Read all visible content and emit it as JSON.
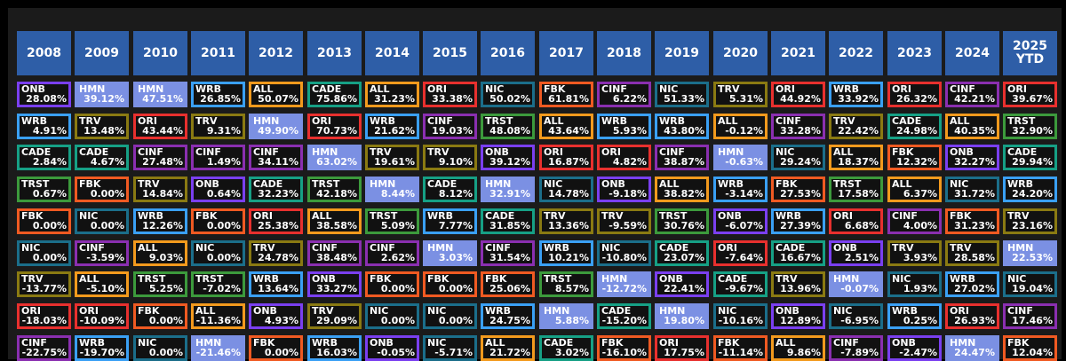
{
  "years": [
    "2008",
    "2009",
    "2010",
    "2011",
    "2012",
    "2013",
    "2014",
    "2015",
    "2016",
    "2017",
    "2018",
    "2019",
    "2020",
    "2021",
    "2022",
    "2023",
    "2024",
    "2025\nYTD"
  ],
  "ticker_colors": {
    "ONB": "#7a3ff0",
    "HMN": "#7b90e3",
    "WRB": "#3aa0f5",
    "ALL": "#f39a1d",
    "CADE": "#16a085",
    "ORI": "#e8302e",
    "NIC": "#1b6e8a",
    "FBK": "#f05a22",
    "CINF": "#8a2fb0",
    "TRV": "#8a7a12",
    "TRST": "#3c9a3c"
  },
  "highlight_ticker": "HMN",
  "columns": [
    [
      [
        "ONB",
        "28.08%"
      ],
      [
        "WRB",
        "4.91%"
      ],
      [
        "CADE",
        "2.84%"
      ],
      [
        "TRST",
        "0.67%"
      ],
      [
        "FBK",
        "0.00%"
      ],
      [
        "NIC",
        "0.00%"
      ],
      [
        "TRV",
        "-13.77%"
      ],
      [
        "ORI",
        "-18.03%"
      ],
      [
        "CINF",
        "-22.75%"
      ]
    ],
    [
      [
        "HMN",
        "39.12%"
      ],
      [
        "TRV",
        "13.48%"
      ],
      [
        "CADE",
        "4.67%"
      ],
      [
        "FBK",
        "0.00%"
      ],
      [
        "NIC",
        "0.00%"
      ],
      [
        "CINF",
        "-3.59%"
      ],
      [
        "ALL",
        "-5.10%"
      ],
      [
        "ORI",
        "-10.09%"
      ],
      [
        "WRB",
        "-19.70%"
      ]
    ],
    [
      [
        "HMN",
        "47.51%"
      ],
      [
        "ORI",
        "43.44%"
      ],
      [
        "CINF",
        "27.48%"
      ],
      [
        "TRV",
        "14.84%"
      ],
      [
        "WRB",
        "12.26%"
      ],
      [
        "ALL",
        "9.03%"
      ],
      [
        "TRST",
        "5.25%"
      ],
      [
        "FBK",
        "0.00%"
      ],
      [
        "NIC",
        "0.00%"
      ]
    ],
    [
      [
        "WRB",
        "26.85%"
      ],
      [
        "TRV",
        "9.31%"
      ],
      [
        "CINF",
        "1.49%"
      ],
      [
        "ONB",
        "0.64%"
      ],
      [
        "FBK",
        "0.00%"
      ],
      [
        "NIC",
        "0.00%"
      ],
      [
        "TRST",
        "-7.02%"
      ],
      [
        "ALL",
        "-11.36%"
      ],
      [
        "HMN",
        "-21.46%"
      ]
    ],
    [
      [
        "ALL",
        "50.07%"
      ],
      [
        "HMN",
        "49.90%"
      ],
      [
        "CINF",
        "34.11%"
      ],
      [
        "CADE",
        "32.23%"
      ],
      [
        "ORI",
        "25.38%"
      ],
      [
        "TRV",
        "24.78%"
      ],
      [
        "WRB",
        "13.64%"
      ],
      [
        "ONB",
        "4.93%"
      ],
      [
        "FBK",
        "0.00%"
      ]
    ],
    [
      [
        "CADE",
        "75.86%"
      ],
      [
        "ORI",
        "70.73%"
      ],
      [
        "HMN",
        "63.02%"
      ],
      [
        "TRST",
        "42.18%"
      ],
      [
        "ALL",
        "38.58%"
      ],
      [
        "CINF",
        "38.48%"
      ],
      [
        "ONB",
        "33.27%"
      ],
      [
        "TRV",
        "29.09%"
      ],
      [
        "WRB",
        "16.03%"
      ]
    ],
    [
      [
        "ALL",
        "31.23%"
      ],
      [
        "WRB",
        "21.62%"
      ],
      [
        "TRV",
        "19.61%"
      ],
      [
        "HMN",
        "8.44%"
      ],
      [
        "TRST",
        "5.09%"
      ],
      [
        "CINF",
        "2.62%"
      ],
      [
        "FBK",
        "0.00%"
      ],
      [
        "NIC",
        "0.00%"
      ],
      [
        "ONB",
        "-0.05%"
      ]
    ],
    [
      [
        "ORI",
        "33.38%"
      ],
      [
        "CINF",
        "19.03%"
      ],
      [
        "TRV",
        "9.10%"
      ],
      [
        "CADE",
        "8.12%"
      ],
      [
        "WRB",
        "7.77%"
      ],
      [
        "HMN",
        "3.03%"
      ],
      [
        "FBK",
        "0.00%"
      ],
      [
        "NIC",
        "0.00%"
      ],
      [
        "NIC",
        "-5.71%"
      ]
    ],
    [
      [
        "NIC",
        "50.02%"
      ],
      [
        "TRST",
        "48.08%"
      ],
      [
        "ONB",
        "39.12%"
      ],
      [
        "HMN",
        "32.91%"
      ],
      [
        "CADE",
        "31.85%"
      ],
      [
        "CINF",
        "31.54%"
      ],
      [
        "FBK",
        "25.06%"
      ],
      [
        "WRB",
        "24.75%"
      ],
      [
        "ALL",
        "21.72%"
      ]
    ],
    [
      [
        "FBK",
        "61.81%"
      ],
      [
        "ALL",
        "43.64%"
      ],
      [
        "ORI",
        "16.87%"
      ],
      [
        "NIC",
        "14.78%"
      ],
      [
        "TRV",
        "13.36%"
      ],
      [
        "WRB",
        "10.21%"
      ],
      [
        "TRST",
        "8.57%"
      ],
      [
        "HMN",
        "5.88%"
      ],
      [
        "CADE",
        "3.02%"
      ]
    ],
    [
      [
        "CINF",
        "6.22%"
      ],
      [
        "WRB",
        "5.93%"
      ],
      [
        "ORI",
        "4.82%"
      ],
      [
        "ONB",
        "-9.18%"
      ],
      [
        "TRV",
        "-9.59%"
      ],
      [
        "NIC",
        "-10.80%"
      ],
      [
        "HMN",
        "-12.72%"
      ],
      [
        "CADE",
        "-15.20%"
      ],
      [
        "FBK",
        "-16.10%"
      ]
    ],
    [
      [
        "NIC",
        "51.33%"
      ],
      [
        "WRB",
        "43.80%"
      ],
      [
        "CINF",
        "38.87%"
      ],
      [
        "ALL",
        "38.82%"
      ],
      [
        "TRST",
        "30.76%"
      ],
      [
        "CADE",
        "23.07%"
      ],
      [
        "ONB",
        "22.41%"
      ],
      [
        "HMN",
        "19.80%"
      ],
      [
        "ORI",
        "17.75%"
      ]
    ],
    [
      [
        "TRV",
        "5.31%"
      ],
      [
        "ALL",
        "-0.12%"
      ],
      [
        "HMN",
        "-0.63%"
      ],
      [
        "WRB",
        "-3.14%"
      ],
      [
        "ONB",
        "-6.07%"
      ],
      [
        "ORI",
        "-7.64%"
      ],
      [
        "CADE",
        "-9.67%"
      ],
      [
        "NIC",
        "-10.16%"
      ],
      [
        "FBK",
        "-11.14%"
      ]
    ],
    [
      [
        "ORI",
        "44.92%"
      ],
      [
        "CINF",
        "33.28%"
      ],
      [
        "NIC",
        "29.24%"
      ],
      [
        "FBK",
        "27.53%"
      ],
      [
        "WRB",
        "27.39%"
      ],
      [
        "CADE",
        "16.67%"
      ],
      [
        "TRV",
        "13.96%"
      ],
      [
        "ONB",
        "12.89%"
      ],
      [
        "ALL",
        "9.86%"
      ]
    ],
    [
      [
        "WRB",
        "33.92%"
      ],
      [
        "TRV",
        "22.42%"
      ],
      [
        "ALL",
        "18.37%"
      ],
      [
        "TRST",
        "17.58%"
      ],
      [
        "ORI",
        "6.68%"
      ],
      [
        "ONB",
        "2.51%"
      ],
      [
        "HMN",
        "-0.07%"
      ],
      [
        "NIC",
        "-6.95%"
      ],
      [
        "CINF",
        "-7.89%"
      ]
    ],
    [
      [
        "ORI",
        "26.32%"
      ],
      [
        "CADE",
        "24.98%"
      ],
      [
        "FBK",
        "12.32%"
      ],
      [
        "ALL",
        "6.37%"
      ],
      [
        "CINF",
        "4.00%"
      ],
      [
        "TRV",
        "3.93%"
      ],
      [
        "NIC",
        "1.93%"
      ],
      [
        "WRB",
        "0.25%"
      ],
      [
        "ONB",
        "-2.47%"
      ]
    ],
    [
      [
        "CINF",
        "42.21%"
      ],
      [
        "ALL",
        "40.35%"
      ],
      [
        "ONB",
        "32.27%"
      ],
      [
        "NIC",
        "31.72%"
      ],
      [
        "FBK",
        "31.23%"
      ],
      [
        "TRV",
        "28.58%"
      ],
      [
        "WRB",
        "27.02%"
      ],
      [
        "ORI",
        "26.93%"
      ],
      [
        "HMN",
        "24.47%"
      ]
    ],
    [
      [
        "ORI",
        "39.67%"
      ],
      [
        "TRST",
        "32.90%"
      ],
      [
        "CADE",
        "29.94%"
      ],
      [
        "WRB",
        "24.20%"
      ],
      [
        "TRV",
        "23.16%"
      ],
      [
        "HMN",
        "22.53%"
      ],
      [
        "NIC",
        "19.04%"
      ],
      [
        "CINF",
        "17.46%"
      ],
      [
        "FBK",
        "12.04%"
      ]
    ]
  ]
}
